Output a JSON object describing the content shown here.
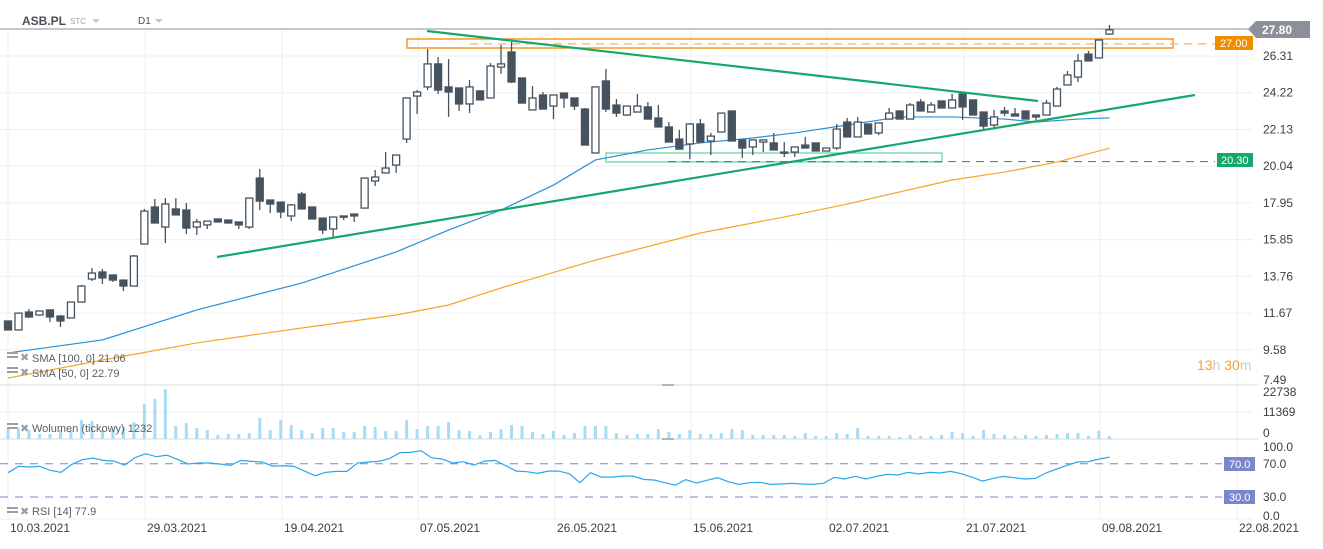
{
  "header": {
    "symbol": "ASB.PL",
    "source": "STC",
    "timeframe": "D1"
  },
  "colors": {
    "candle": "#46535e",
    "sma100": "#f5a623",
    "sma50": "#2a8fd6",
    "trendline": "#16a86a",
    "zone_orange": "#f08c00",
    "zone_green": "#5fd0a8",
    "volume": "#a8dcf5",
    "rsi": "#2aa8ec",
    "rsi_level": "#7b86cc",
    "price_badge": "#8b9196"
  },
  "price_axis": {
    "labels": [
      "26.31",
      "24.22",
      "22.13",
      "20.04",
      "17.95",
      "15.85",
      "13.76",
      "11.67",
      "9.58",
      "7.49"
    ]
  },
  "current_price": "27.80",
  "levels": [
    {
      "value": "27.00",
      "color": "#f08c00"
    },
    {
      "value": "20.30",
      "color": "#16a86a"
    }
  ],
  "countdown": {
    "hours": "13",
    "h": "h",
    "minutes": "30",
    "m": "m"
  },
  "indicators": {
    "sma100": {
      "label": "SMA [100,  0] 21.06"
    },
    "sma50": {
      "label": "SMA [50,  0] 22.79"
    },
    "volume": {
      "label": "Wolumen  (tickowy)  1232",
      "axis": [
        "22738",
        "11369",
        "0"
      ]
    },
    "rsi": {
      "label": "RSI [14] 77.9",
      "axis": [
        "100.0",
        "70.0",
        "30.0",
        "0.0"
      ],
      "levels": [
        "70.0",
        "30.0"
      ]
    }
  },
  "date_axis": [
    "10.03.2021",
    "29.03.2021",
    "19.04.2021",
    "07.05.2021",
    "26.05.2021",
    "15.06.2021",
    "02.07.2021",
    "21.07.2021",
    "09.08.2021",
    "22.08.2021"
  ],
  "chart_data": {
    "type": "candlestick",
    "ohlc": [
      [
        11.22,
        11.22,
        10.71,
        10.71
      ],
      [
        10.71,
        11.67,
        10.71,
        11.67
      ],
      [
        11.73,
        11.9,
        11.39,
        11.45
      ],
      [
        11.56,
        11.79,
        11.56,
        11.79
      ],
      [
        11.85,
        11.85,
        11.16,
        11.45
      ],
      [
        11.5,
        11.56,
        10.88,
        11.22
      ],
      [
        11.39,
        12.3,
        11.39,
        12.3
      ],
      [
        12.3,
        13.27,
        12.3,
        13.21
      ],
      [
        13.61,
        14.24,
        13.5,
        13.95
      ],
      [
        14.01,
        14.18,
        13.33,
        13.67
      ],
      [
        13.84,
        13.84,
        13.44,
        13.55
      ],
      [
        13.55,
        13.55,
        12.93,
        13.21
      ],
      [
        13.21,
        14.98,
        13.21,
        14.92
      ],
      [
        15.6,
        17.6,
        15.6,
        17.48
      ],
      [
        17.71,
        18.17,
        16.8,
        16.8
      ],
      [
        16.57,
        18.22,
        15.66,
        17.88
      ],
      [
        17.6,
        18.22,
        17.26,
        17.26
      ],
      [
        17.54,
        17.94,
        16.17,
        16.51
      ],
      [
        16.57,
        17.03,
        16.12,
        16.86
      ],
      [
        16.69,
        16.91,
        16.46,
        16.91
      ],
      [
        17.03,
        17.03,
        16.86,
        16.86
      ],
      [
        16.97,
        16.97,
        16.8,
        16.8
      ],
      [
        16.86,
        16.86,
        16.46,
        16.69
      ],
      [
        16.57,
        18.22,
        16.46,
        18.22
      ],
      [
        19.36,
        19.88,
        17.54,
        18.05
      ],
      [
        18.11,
        18.11,
        17.37,
        17.88
      ],
      [
        17.99,
        17.99,
        17.08,
        17.43
      ],
      [
        17.2,
        17.88,
        16.91,
        17.83
      ],
      [
        18.45,
        18.57,
        17.6,
        17.6
      ],
      [
        17.71,
        17.71,
        17.03,
        17.03
      ],
      [
        17.08,
        17.08,
        16.17,
        16.4
      ],
      [
        16.46,
        17.14,
        15.95,
        17.14
      ],
      [
        17.2,
        17.2,
        16.97,
        17.14
      ],
      [
        17.31,
        17.31,
        16.86,
        17.2
      ],
      [
        17.65,
        19.36,
        17.65,
        19.36
      ],
      [
        19.19,
        19.82,
        18.91,
        19.42
      ],
      [
        19.65,
        20.84,
        19.65,
        19.93
      ],
      [
        20.1,
        20.67,
        19.65,
        20.67
      ],
      [
        21.58,
        23.92,
        21.36,
        23.92
      ],
      [
        24.03,
        24.37,
        23.01,
        24.26
      ],
      [
        24.55,
        26.71,
        24.37,
        25.86
      ],
      [
        25.86,
        26.25,
        24.15,
        24.37
      ],
      [
        24.55,
        26.14,
        22.84,
        24.26
      ],
      [
        24.49,
        24.49,
        23.18,
        23.58
      ],
      [
        23.58,
        24.94,
        23.06,
        24.55
      ],
      [
        24.32,
        24.37,
        23.81,
        23.81
      ],
      [
        23.92,
        25.91,
        23.92,
        25.74
      ],
      [
        25.68,
        26.94,
        25.29,
        25.86
      ],
      [
        26.54,
        27.11,
        24.77,
        24.83
      ],
      [
        25.06,
        25.06,
        23.63,
        23.63
      ],
      [
        23.24,
        24.6,
        23.24,
        23.92
      ],
      [
        24.09,
        24.26,
        23.29,
        23.29
      ],
      [
        23.46,
        24.09,
        22.72,
        24.09
      ],
      [
        24.2,
        24.2,
        23.35,
        23.92
      ],
      [
        23.92,
        23.92,
        23.24,
        23.46
      ],
      [
        23.29,
        23.35,
        21.24,
        21.24
      ],
      [
        20.79,
        24.55,
        20.79,
        24.55
      ],
      [
        24.89,
        25.57,
        23.12,
        23.29
      ],
      [
        23.52,
        23.86,
        22.84,
        23.06
      ],
      [
        22.95,
        23.46,
        22.89,
        23.46
      ],
      [
        23.12,
        24.15,
        23.12,
        23.46
      ],
      [
        23.41,
        23.69,
        22.72,
        22.72
      ],
      [
        22.78,
        23.52,
        22.27,
        22.27
      ],
      [
        22.27,
        22.55,
        21.41,
        21.41
      ],
      [
        21.58,
        22.1,
        21.01,
        21.01
      ],
      [
        21.3,
        22.5,
        20.44,
        22.44
      ],
      [
        22.44,
        22.72,
        21.41,
        21.41
      ],
      [
        21.47,
        21.93,
        20.67,
        21.75
      ],
      [
        21.98,
        23.06,
        21.98,
        23.06
      ],
      [
        23.18,
        23.18,
        21.47,
        21.47
      ],
      [
        21.53,
        21.53,
        20.5,
        21.07
      ],
      [
        21.13,
        21.53,
        20.67,
        21.53
      ],
      [
        21.41,
        21.53,
        20.84,
        21.53
      ],
      [
        21.36,
        21.93,
        20.96,
        20.96
      ],
      [
        20.79,
        21.41,
        20.56,
        20.84
      ],
      [
        20.84,
        20.96,
        20.56,
        21.13
      ],
      [
        21.24,
        21.7,
        21.07,
        21.07
      ],
      [
        21.36,
        21.36,
        20.9,
        20.9
      ],
      [
        20.9,
        21.07,
        20.9,
        21.07
      ],
      [
        21.07,
        22.44,
        20.96,
        22.15
      ],
      [
        22.55,
        22.78,
        21.7,
        21.7
      ],
      [
        21.7,
        22.84,
        21.7,
        22.55
      ],
      [
        22.44,
        22.44,
        21.87,
        21.87
      ],
      [
        21.93,
        22.5,
        21.81,
        22.5
      ],
      [
        22.72,
        23.35,
        22.72,
        23.06
      ],
      [
        23.18,
        23.18,
        22.72,
        22.72
      ],
      [
        22.72,
        23.63,
        22.72,
        23.52
      ],
      [
        23.69,
        23.86,
        23.18,
        23.18
      ],
      [
        23.12,
        23.69,
        23.12,
        23.52
      ],
      [
        23.75,
        23.75,
        23.35,
        23.35
      ],
      [
        23.35,
        24.15,
        23.35,
        23.81
      ],
      [
        24.15,
        24.15,
        22.67,
        23.41
      ],
      [
        23.81,
        23.81,
        22.95,
        22.95
      ],
      [
        23.12,
        23.12,
        22.15,
        22.32
      ],
      [
        22.38,
        23.24,
        22.21,
        22.84
      ],
      [
        23.18,
        23.41,
        22.89,
        23.06
      ],
      [
        23.01,
        23.35,
        22.89,
        22.89
      ],
      [
        23.18,
        23.18,
        22.72,
        22.72
      ],
      [
        22.95,
        22.95,
        22.67,
        22.84
      ],
      [
        22.95,
        23.81,
        22.95,
        23.63
      ],
      [
        23.46,
        24.55,
        23.46,
        24.43
      ],
      [
        24.66,
        25.46,
        24.66,
        25.23
      ],
      [
        25.11,
        26.42,
        24.83,
        26.03
      ],
      [
        26.42,
        26.6,
        26.03,
        26.03
      ],
      [
        26.2,
        27.22,
        26.2,
        27.22
      ],
      [
        27.56,
        28.08,
        27.51,
        27.8
      ]
    ],
    "sma50": [
      [
        0,
        9.4
      ],
      [
        9,
        10.14
      ],
      [
        18,
        11.85
      ],
      [
        28,
        13.38
      ],
      [
        37,
        15.15
      ],
      [
        42,
        16.4
      ],
      [
        47,
        17.54
      ],
      [
        52,
        18.96
      ],
      [
        56,
        20.39
      ],
      [
        61,
        20.96
      ],
      [
        66,
        21.36
      ],
      [
        71,
        21.64
      ],
      [
        75,
        21.93
      ],
      [
        80,
        22.38
      ],
      [
        85,
        22.84
      ],
      [
        90,
        22.84
      ],
      [
        95,
        22.72
      ],
      [
        98,
        22.55
      ],
      [
        102,
        22.72
      ],
      [
        105,
        22.79
      ]
    ],
    "sma100": [
      [
        0,
        7.97
      ],
      [
        9,
        8.99
      ],
      [
        18,
        9.97
      ],
      [
        28,
        10.82
      ],
      [
        37,
        11.56
      ],
      [
        42,
        12.13
      ],
      [
        47,
        13.1
      ],
      [
        56,
        14.69
      ],
      [
        66,
        16.23
      ],
      [
        75,
        17.26
      ],
      [
        80,
        17.88
      ],
      [
        85,
        18.57
      ],
      [
        90,
        19.25
      ],
      [
        95,
        19.7
      ],
      [
        100,
        20.27
      ],
      [
        105,
        21.06
      ]
    ],
    "volume": [
      4200,
      4480,
      3780,
      2100,
      2100,
      3780,
      3780,
      7980,
      7560,
      3780,
      4480,
      5040,
      7140,
      14700,
      16800,
      21000,
      5460,
      6720,
      4620,
      3780,
      1680,
      2100,
      2100,
      2520,
      8820,
      3780,
      7980,
      5880,
      3780,
      2520,
      4620,
      4620,
      2940,
      2940,
      5460,
      5040,
      3360,
      3360,
      7980,
      4200,
      5460,
      5460,
      7140,
      3780,
      3360,
      1680,
      2940,
      4200,
      5880,
      5460,
      2940,
      2100,
      3360,
      1680,
      2520,
      5460,
      5460,
      5460,
      2520,
      1680,
      2100,
      2100,
      4200,
      2940,
      2100,
      3780,
      2100,
      2100,
      2520,
      4200,
      3780,
      1680,
      1680,
      1680,
      1680,
      1260,
      2520,
      1260,
      1260,
      2520,
      2100,
      4620,
      1260,
      1260,
      1260,
      840,
      1680,
      1260,
      1260,
      1680,
      2940,
      2520,
      1260,
      3780,
      2100,
      1680,
      1260,
      1680,
      1260,
      1680,
      2100,
      2520,
      2520,
      1260,
      3360,
      1232
    ],
    "rsi": [
      59.2,
      66.8,
      66,
      66.8,
      62,
      59.6,
      69,
      74.8,
      76.7,
      74,
      73.1,
      68.3,
      77.2,
      82,
      78.4,
      80.3,
      75.2,
      69.6,
      70.8,
      70.8,
      69.6,
      68,
      74,
      72.8,
      72,
      67.1,
      67.5,
      66.8,
      61.1,
      55.6,
      59.6,
      60.8,
      60.8,
      70.8,
      72,
      72.8,
      76,
      83.2,
      83.6,
      85.6,
      77.2,
      75.5,
      70.8,
      72.4,
      68.3,
      73.1,
      74,
      67.5,
      61.1,
      60.4,
      58.4,
      61.1,
      61.1,
      58,
      47.2,
      59.2,
      53.9,
      53.9,
      55.1,
      55.1,
      51.2,
      50.4,
      47.2,
      44.3,
      50.8,
      46.8,
      50,
      53.2,
      48.4,
      45.2,
      47.2,
      47.6,
      45.2,
      45.6,
      46.4,
      45.6,
      45.2,
      46.4,
      53.6,
      51.6,
      54.8,
      51.6,
      54.8,
      57.2,
      56.4,
      59.6,
      57.6,
      59.6,
      58.8,
      60.8,
      58,
      53.9,
      49.1,
      52.3,
      54.8,
      53.2,
      51.6,
      52.3,
      58.8,
      63.6,
      68,
      72,
      72.4,
      75.5,
      77.9
    ]
  }
}
